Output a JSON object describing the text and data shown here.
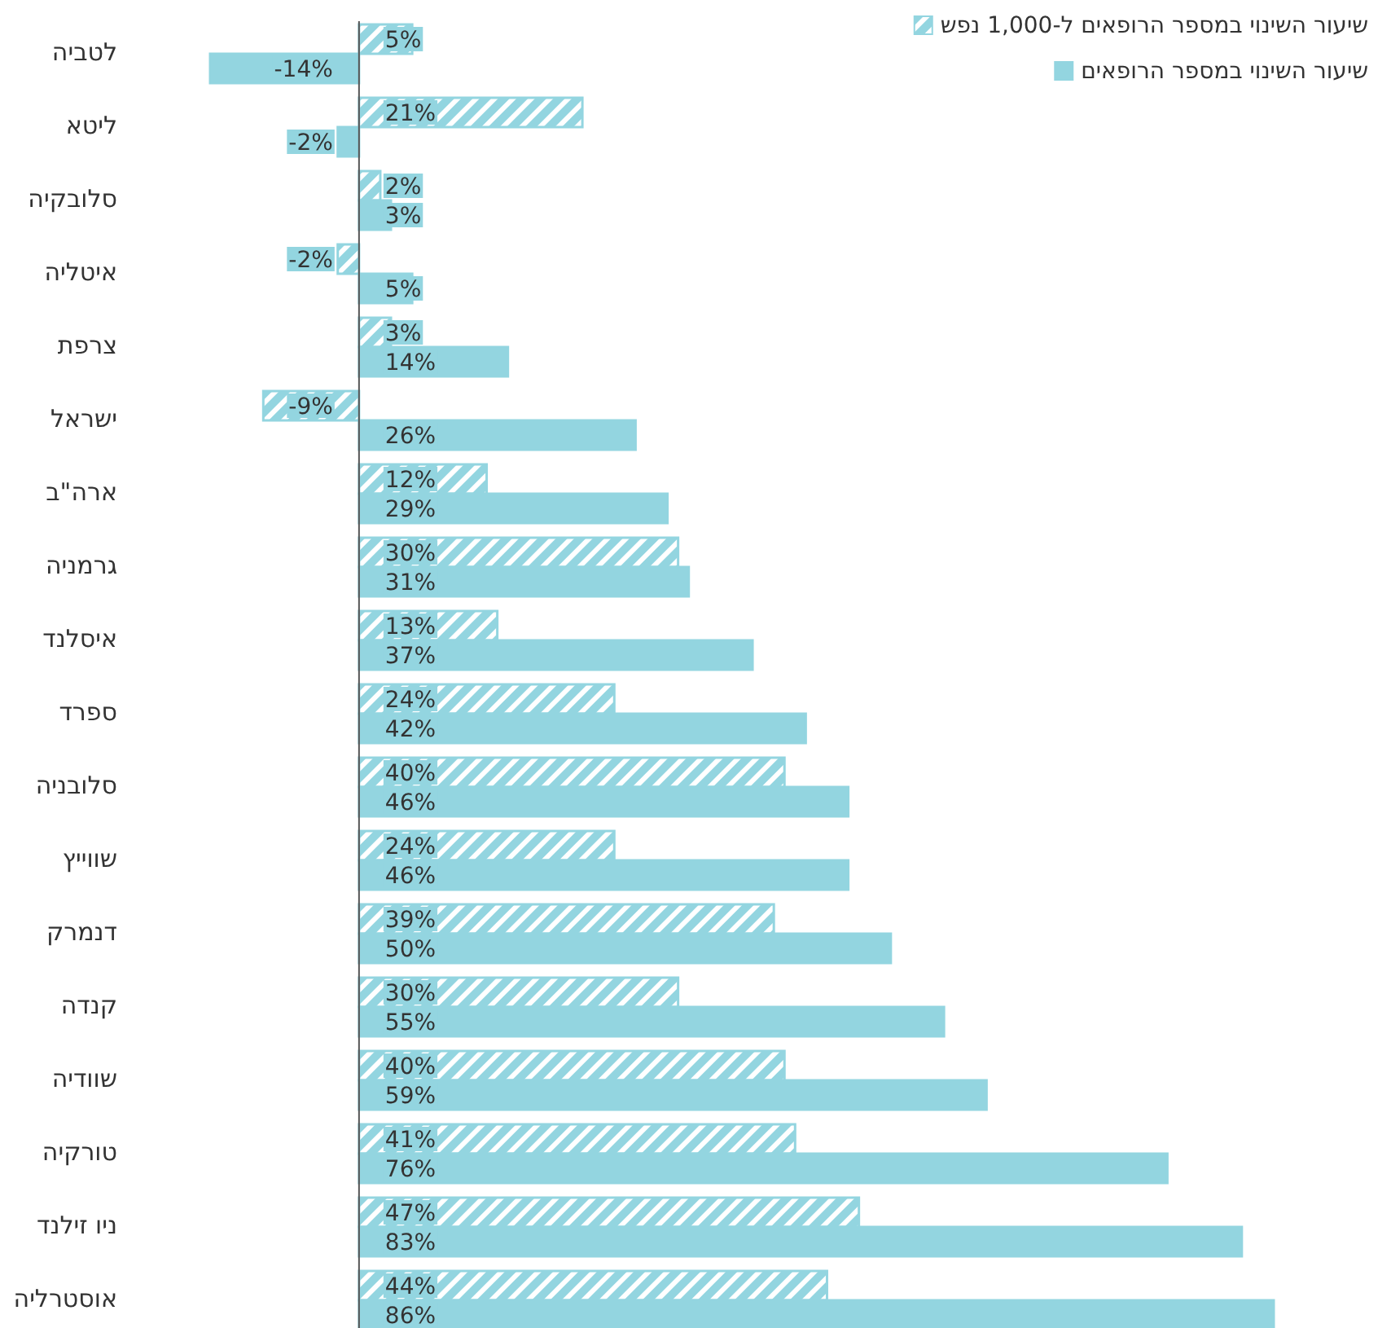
{
  "chart_data": {
    "type": "bar",
    "orientation": "horizontal",
    "legend": "top right",
    "categories": [
      "לטביה",
      "ליטא",
      "סלובקיה",
      "איטליה",
      "צרפת",
      "ישראל",
      "ארה\"ב",
      "גרמניה",
      "איסלנד",
      "ספרד",
      "סלובניה",
      "שווייץ",
      "דנמרק",
      "קנדה",
      "שוודיה",
      "טורקיה",
      "ניו זילנד",
      "אוסטרליה"
    ],
    "series": [
      {
        "name": "שיעור השינוי במספר הרופאים ל-1,000 נפש",
        "color": "#93d5e0",
        "values": [
          5,
          21,
          2,
          -2,
          3,
          -9,
          12,
          30,
          13,
          24,
          40,
          24,
          39,
          30,
          40,
          41,
          47,
          44
        ],
        "value_labels": [
          "5%",
          "21%",
          "2%",
          "-2%",
          "3%",
          "-9%",
          "12%",
          "30%",
          "13%",
          "24%",
          "40%",
          "24%",
          "39%",
          "30%",
          "40%",
          "41%",
          "47%",
          "44%"
        ]
      },
      {
        "name": "שיעור השינוי במספר הרופאים",
        "color": "#93d5e0",
        "values": [
          -14,
          -2,
          3,
          5,
          14,
          26,
          29,
          31,
          37,
          42,
          46,
          46,
          50,
          55,
          59,
          76,
          83,
          86
        ],
        "value_labels": [
          "-14%",
          "-2%",
          "3%",
          "5%",
          "14%",
          "26%",
          "29%",
          "31%",
          "37%",
          "42%",
          "46%",
          "46%",
          "50%",
          "55%",
          "59%",
          "76%",
          "83%",
          "86%"
        ]
      }
    ]
  }
}
